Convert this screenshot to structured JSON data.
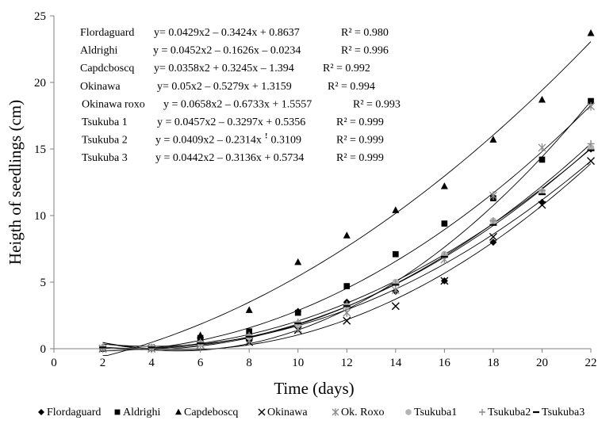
{
  "chart_data": {
    "type": "scatter",
    "xlabel": "Time (days)",
    "ylabel": "Heigth of seedlings (cm)",
    "xlim": [
      0,
      22
    ],
    "ylim": [
      0,
      25
    ],
    "xticks": [
      0,
      2,
      4,
      6,
      8,
      10,
      12,
      14,
      16,
      18,
      20,
      22
    ],
    "yticks": [
      0,
      5,
      10,
      15,
      20,
      25
    ],
    "grid": false,
    "legend_position": "bottom",
    "trendline": "polynomial order 2",
    "x": [
      2,
      4,
      6,
      8,
      10,
      12,
      14,
      16,
      18,
      20,
      22
    ],
    "equations": [
      {
        "name": "Flordaguard",
        "equation": "y= 0.0429x2 – 0.3424x + 0.8637",
        "r2": "R² = 0.980"
      },
      {
        "name": "Aldrighi",
        "equation": "y = 0.0452x2 – 0.1626x – 0.0234",
        "r2": "R² = 0.996"
      },
      {
        "name": "Capdcboscq",
        "equation": "y= 0.0358x2 + 0.3245x – 1.394",
        "r2": "R² = 0.992"
      },
      {
        "name": "Okinawa",
        "equation": "y= 0.05x2 – 0.5279x + 1.3159",
        "r2": "R² = 0.994"
      },
      {
        "name": "Okinawa roxo",
        "equation": "y = 0.0658x2 – 0.6733x + 1.5557",
        "r2": "R² = 0.993"
      },
      {
        "name": "Tsukuba 1",
        "equation": "y = 0.0457x2 – 0.3297x + 0.5356",
        "r2": "R² = 0.999"
      },
      {
        "name": "Tsukuba 2",
        "equation": "y = 0.0409x2 – 0.2314x ꜝ 0.3109",
        "r2": "R² = 0.999"
      },
      {
        "name": "Tsukuba 3",
        "equation": "y = 0.0442x2 – 0.3136x + 0.5734",
        "r2": "R² = 0.999"
      }
    ],
    "series": [
      {
        "name": "Flordaguard",
        "marker": "diamond",
        "color": "#000000",
        "coef": [
          0.0429,
          -0.3424,
          0.8637
        ],
        "values": [
          0.0,
          0.0,
          0.8,
          0.6,
          2.8,
          3.5,
          4.3,
          5.1,
          8.0,
          11.0,
          15.0
        ]
      },
      {
        "name": "Aldrighi",
        "marker": "square",
        "color": "#000000",
        "coef": [
          0.0452,
          -0.1626,
          -0.0234
        ],
        "values": [
          0.0,
          0.1,
          0.8,
          1.3,
          2.7,
          4.7,
          7.1,
          9.4,
          11.3,
          14.2,
          18.6
        ]
      },
      {
        "name": "Capdeboscq",
        "marker": "triangle",
        "color": "#000000",
        "coef": [
          0.0358,
          0.3245,
          -1.394
        ],
        "values": [
          0.0,
          0.1,
          1.0,
          2.9,
          6.5,
          8.5,
          10.4,
          12.2,
          15.7,
          18.7,
          23.7
        ]
      },
      {
        "name": "Okinawa",
        "marker": "x",
        "color": "#000000",
        "coef": [
          0.05,
          -0.5279,
          1.3159
        ],
        "values": [
          0.0,
          0.0,
          0.3,
          0.5,
          1.4,
          2.1,
          3.2,
          5.1,
          8.4,
          10.8,
          14.1
        ]
      },
      {
        "name": "Ok. Roxo",
        "marker": "asterisk",
        "color": "#8c8c8c",
        "coef": [
          0.0658,
          -0.6733,
          1.5557
        ],
        "values": [
          0.0,
          0.0,
          0.3,
          0.6,
          1.5,
          2.7,
          4.4,
          6.7,
          11.5,
          15.1,
          18.2
        ]
      },
      {
        "name": "Tsukuba1",
        "marker": "circle",
        "color": "#b4b4b4",
        "coef": [
          0.0457,
          -0.3297,
          0.5356
        ],
        "values": [
          0.1,
          0.1,
          0.4,
          0.9,
          1.9,
          3.2,
          5.0,
          7.1,
          9.6,
          11.8,
          15.1
        ]
      },
      {
        "name": "Tsukuba2",
        "marker": "plus",
        "color": "#8c8c8c",
        "coef": [
          0.0409,
          -0.2314,
          0.3109
        ],
        "values": [
          0.1,
          0.1,
          0.5,
          1.0,
          2.0,
          3.3,
          4.9,
          7.0,
          9.6,
          11.9,
          15.4
        ]
      },
      {
        "name": "Tsukuba3",
        "marker": "dash",
        "color": "#000000",
        "coef": [
          0.0442,
          -0.3136,
          0.5734
        ],
        "values": [
          0.1,
          0.1,
          0.4,
          0.9,
          1.9,
          3.2,
          4.8,
          6.9,
          9.3,
          11.6,
          14.9
        ]
      }
    ]
  }
}
